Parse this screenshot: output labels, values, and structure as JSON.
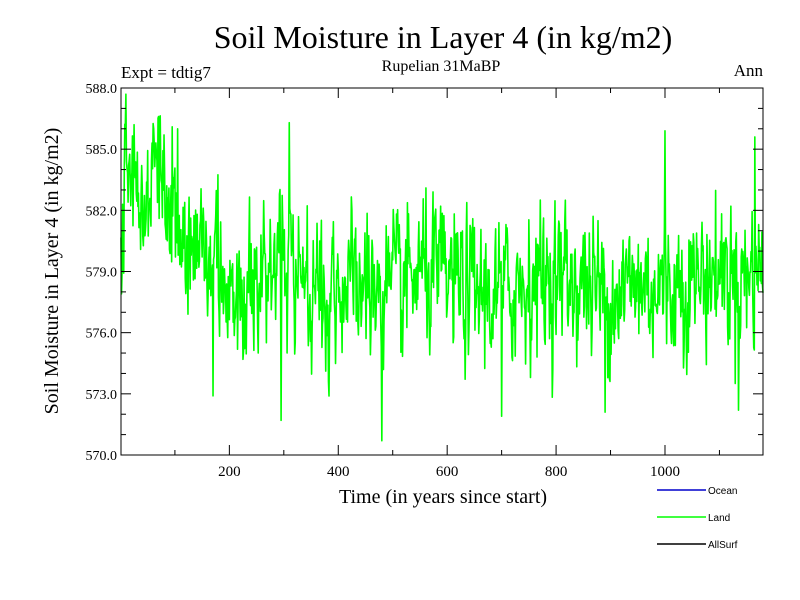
{
  "chart_data": {
    "type": "line",
    "title": "Soil Moisture in Layer 4 (in kg/m2)",
    "subtitle": "Rupelian  31MaBP",
    "left_note": "Expt = tdtig7",
    "right_note": "Ann",
    "xlabel": "Time (in years since start)",
    "ylabel": "Soil Moisture in Layer 4 (in kg/m2)",
    "xlim": [
      1,
      1180
    ],
    "ylim": [
      570.0,
      588.0
    ],
    "xticks": [
      200,
      400,
      600,
      800,
      1000
    ],
    "xtick_labels": [
      "200",
      "400",
      "600",
      "800",
      "1000"
    ],
    "yticks": [
      570.0,
      573.0,
      576.0,
      579.0,
      582.0,
      585.0,
      588.0
    ],
    "ytick_labels": [
      "570.0",
      "573.0",
      "576.0",
      "579.0",
      "582.0",
      "585.0",
      "588.0"
    ],
    "legend_position": "bottom-right",
    "legend": [
      {
        "name": "Ocean",
        "color": "#0000cc"
      },
      {
        "name": "Land",
        "color": "#00ff00"
      },
      {
        "name": "AllSurf",
        "color": "#000000"
      }
    ],
    "series": [
      {
        "name": "Land",
        "color": "#00ff00",
        "n_points": 1180,
        "x_start": 1,
        "seed": 31,
        "anchors": [
          [
            1,
            580.5
          ],
          [
            20,
            583.2
          ],
          [
            40,
            582.5
          ],
          [
            60,
            582.8
          ],
          [
            80,
            583.0
          ],
          [
            100,
            582.8
          ],
          [
            120,
            580.2
          ],
          [
            150,
            579.5
          ],
          [
            200,
            578.6
          ],
          [
            250,
            578.0
          ],
          [
            300,
            578.8
          ],
          [
            350,
            578.6
          ],
          [
            400,
            578.4
          ],
          [
            450,
            578.2
          ],
          [
            500,
            578.0
          ],
          [
            550,
            578.8
          ],
          [
            600,
            578.6
          ],
          [
            650,
            578.0
          ],
          [
            700,
            577.8
          ],
          [
            750,
            578.6
          ],
          [
            800,
            578.8
          ],
          [
            850,
            578.4
          ],
          [
            900,
            578.0
          ],
          [
            950,
            578.4
          ],
          [
            1000,
            578.2
          ],
          [
            1050,
            578.6
          ],
          [
            1100,
            579.0
          ],
          [
            1150,
            578.8
          ],
          [
            1180,
            579.2
          ]
        ],
        "noise_sd": 1.75,
        "extremes": [
          [
            10,
            587.7
          ],
          [
            25,
            586.2
          ],
          [
            70,
            586.6
          ],
          [
            95,
            586.1
          ],
          [
            105,
            586.0
          ],
          [
            170,
            572.9
          ],
          [
            295,
            571.7
          ],
          [
            310,
            586.3
          ],
          [
            480,
            570.7
          ],
          [
            700,
            571.9
          ],
          [
            890,
            572.1
          ],
          [
            1000,
            585.9
          ],
          [
            1135,
            572.2
          ],
          [
            1165,
            585.6
          ]
        ]
      },
      {
        "name": "Ocean",
        "color": "#0000cc",
        "values": []
      },
      {
        "name": "AllSurf",
        "color": "#000000",
        "values": []
      }
    ]
  }
}
